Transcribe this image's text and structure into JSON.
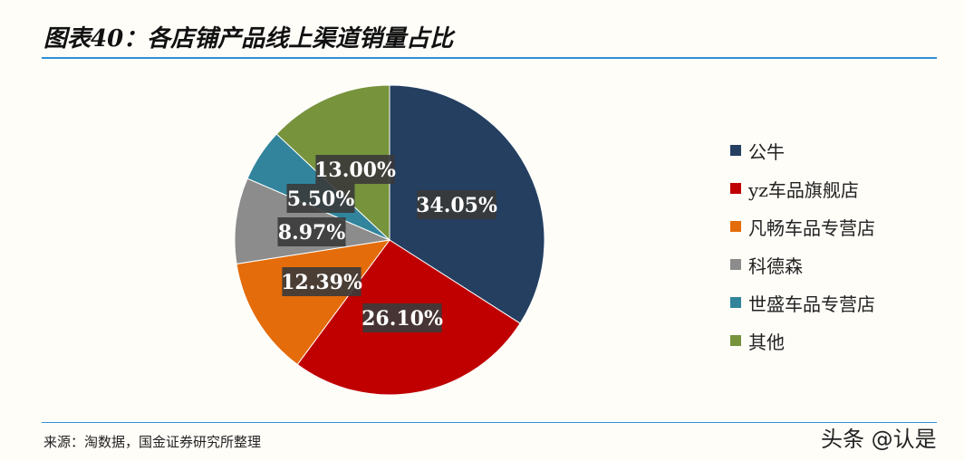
{
  "title": "图表40：各店铺产品线上渠道销量占比",
  "source": "来源：淘数据，国金证券研究所整理",
  "watermark": "头条 @认是",
  "chart_data": {
    "type": "pie",
    "categories": [
      "公牛",
      "yz车品旗舰店",
      "凡畅车品专营店",
      "科德森",
      "世盛车品专营店",
      "其他"
    ],
    "values": [
      34.05,
      26.1,
      12.39,
      8.97,
      5.5,
      13.0
    ],
    "labels": [
      "34.05%",
      "26.10%",
      "12.39%",
      "8.97%",
      "5.50%",
      "13.00%"
    ],
    "colors": [
      "#243f60",
      "#c00000",
      "#e46c0a",
      "#8c8c8c",
      "#31849b",
      "#77933c"
    ],
    "legend_position": "right"
  }
}
